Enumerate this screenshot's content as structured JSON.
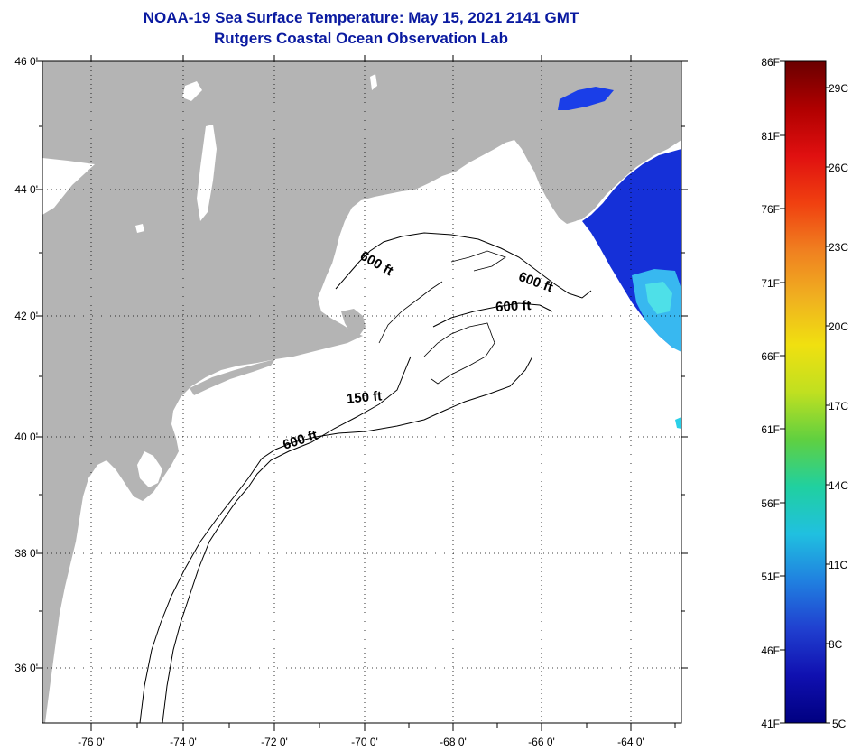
{
  "title": "NOAA-19 Sea Surface Temperature:  May 15, 2021 2141 GMT",
  "subtitle": "Rutgers Coastal Ocean Observation Lab",
  "map": {
    "lat_labels": [
      "46 0'",
      "44 0'",
      "42 0'",
      "40 0'",
      "38 0'",
      "36 0'"
    ],
    "lon_labels": [
      "-76 0'",
      "-74 0'",
      "-72 0'",
      "-70 0'",
      "-68 0'",
      "-66 0'",
      "-64 0'"
    ],
    "contour_labels": [
      "600 ft",
      "600 ft",
      "600 ft",
      "150 ft",
      "600 ft"
    ],
    "colors": {
      "land": "#b4b4b4",
      "water": "#ffffff",
      "contour": "#000000"
    }
  },
  "colorbar": {
    "fahrenheit_labels": [
      "86F",
      "81F",
      "76F",
      "71F",
      "66F",
      "61F",
      "56F",
      "51F",
      "46F",
      "41F"
    ],
    "celsius_labels": [
      "29C",
      "26C",
      "23C",
      "20C",
      "17C",
      "14C",
      "11C",
      "8C",
      "5C"
    ],
    "gradient_colors": [
      "#6a0000",
      "#b00000",
      "#e01010",
      "#f04010",
      "#f08020",
      "#f0b020",
      "#f0e010",
      "#c0e020",
      "#60d040",
      "#20d0a0",
      "#20c0e0",
      "#2080e0",
      "#2040d0",
      "#1010b0",
      "#000080"
    ]
  }
}
